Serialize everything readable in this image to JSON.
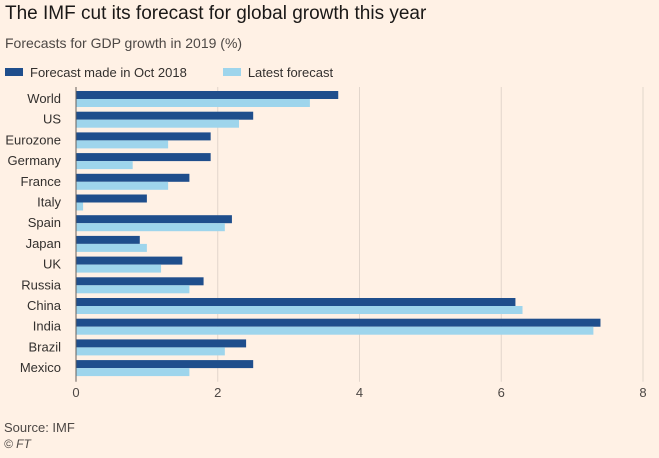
{
  "header": {
    "title": "The IMF cut its forecast for global growth this year",
    "subtitle": "Forecasts for GDP growth in 2019 (%)"
  },
  "footer": {
    "source": "Source: IMF",
    "copyright": "© FT"
  },
  "colors": {
    "background": "#fff1e5",
    "series_oct": "#1f4e8c",
    "series_latest": "#9ed5ec",
    "grid": "#e2d6cc"
  },
  "chart_data": {
    "type": "bar",
    "orientation": "horizontal",
    "title": "The IMF cut its forecast for global growth this year",
    "subtitle": "Forecasts for GDP growth in 2019 (%)",
    "xlabel": "",
    "ylabel": "",
    "xlim": [
      0,
      8
    ],
    "xticks": [
      0,
      2,
      4,
      6,
      8
    ],
    "grid": true,
    "legend_position": "top-left",
    "categories": [
      "World",
      "US",
      "Eurozone",
      "Germany",
      "France",
      "Italy",
      "Spain",
      "Japan",
      "UK",
      "Russia",
      "China",
      "India",
      "Brazil",
      "Mexico"
    ],
    "series": [
      {
        "name": "Forecast made in Oct 2018",
        "color": "#1f4e8c",
        "values": [
          3.7,
          2.5,
          1.9,
          1.9,
          1.6,
          1.0,
          2.2,
          0.9,
          1.5,
          1.8,
          6.2,
          7.4,
          2.4,
          2.5
        ]
      },
      {
        "name": "Latest forecast",
        "color": "#9ed5ec",
        "values": [
          3.3,
          2.3,
          1.3,
          0.8,
          1.3,
          0.1,
          2.1,
          1.0,
          1.2,
          1.6,
          6.3,
          7.3,
          2.1,
          1.6
        ]
      }
    ]
  }
}
